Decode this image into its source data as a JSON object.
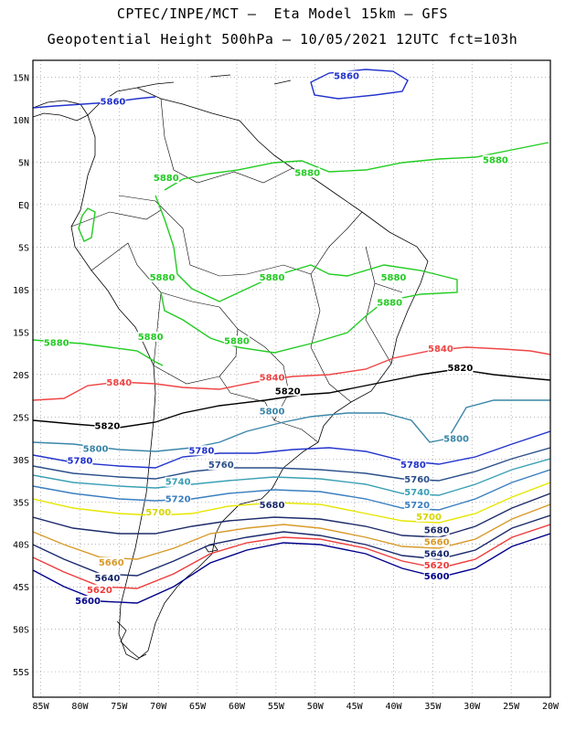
{
  "title": {
    "line1": "CPTEC/INPE/MCT –  Eta Model 15km – GFS",
    "line2": "Geopotential Height 500hPa – 10/05/2021 12UTC fct=103h"
  },
  "axes": {
    "lat_labels": [
      "15N",
      "10N",
      "5N",
      "EQ",
      "5S",
      "10S",
      "15S",
      "20S",
      "25S",
      "30S",
      "35S",
      "40S",
      "45S",
      "50S",
      "55S"
    ],
    "lon_labels": [
      "85W",
      "80W",
      "75W",
      "70W",
      "65W",
      "60W",
      "55W",
      "50W",
      "45W",
      "40W",
      "35W",
      "30W",
      "25W",
      "20W"
    ]
  },
  "chart_data": {
    "type": "contour_map",
    "variable": "geopotential height 500hPa",
    "xlim": [
      -86,
      -20
    ],
    "ylim": [
      -58,
      17
    ],
    "contour_levels": [
      {
        "value": 5600,
        "color": "#00008b"
      },
      {
        "value": 5620,
        "color": "#ef3b3b"
      },
      {
        "value": 5640,
        "color": "#1a2a6c"
      },
      {
        "value": 5660,
        "color": "#d89a2a"
      },
      {
        "value": 5680,
        "color": "#1d2b6b"
      },
      {
        "value": 5700,
        "color": "#e6e600"
      },
      {
        "value": 5720,
        "color": "#3a7ec0"
      },
      {
        "value": 5740,
        "color": "#3aa0b5"
      },
      {
        "value": 5760,
        "color": "#2b4f8a"
      },
      {
        "value": 5780,
        "color": "#2233cc"
      },
      {
        "value": 5800,
        "color": "#3a86a8"
      },
      {
        "value": 5820,
        "color": "#000000"
      },
      {
        "value": 5840,
        "color": "#ef4444"
      },
      {
        "value": 5860,
        "color": "#2233cc"
      },
      {
        "value": 5880,
        "color": "#22cc22"
      }
    ],
    "contour_labels": [
      {
        "text": "5860",
        "lon": -46,
        "lat": 14.9,
        "color": "#2233cc"
      },
      {
        "text": "5860",
        "lon": -75.8,
        "lat": 11.9,
        "color": "#2233cc"
      },
      {
        "text": "5880",
        "lon": -69,
        "lat": 2.9,
        "color": "#22cc22"
      },
      {
        "text": "5880",
        "lon": -51,
        "lat": 3.5,
        "color": "#22cc22"
      },
      {
        "text": "5880",
        "lon": -27,
        "lat": 5.0,
        "color": "#22cc22"
      },
      {
        "text": "5880",
        "lon": -69.5,
        "lat": -8.8,
        "color": "#22cc22"
      },
      {
        "text": "5880",
        "lon": -55.5,
        "lat": -8.8,
        "color": "#22cc22"
      },
      {
        "text": "5880",
        "lon": -40,
        "lat": -8.8,
        "color": "#22cc22"
      },
      {
        "text": "5880",
        "lon": -40.5,
        "lat": -11.8,
        "color": "#22cc22"
      },
      {
        "text": "5880",
        "lon": -83,
        "lat": -16.5,
        "color": "#22cc22"
      },
      {
        "text": "5880",
        "lon": -71,
        "lat": -15.8,
        "color": "#22cc22"
      },
      {
        "text": "5880",
        "lon": -60,
        "lat": -16.3,
        "color": "#22cc22"
      },
      {
        "text": "5840",
        "lon": -34,
        "lat": -17.2,
        "color": "#ef4444"
      },
      {
        "text": "5840",
        "lon": -75,
        "lat": -21.2,
        "color": "#ef4444"
      },
      {
        "text": "5840",
        "lon": -55.5,
        "lat": -20.6,
        "color": "#ef4444"
      },
      {
        "text": "5820",
        "lon": -31.5,
        "lat": -19.5,
        "color": "#000000"
      },
      {
        "text": "5820",
        "lon": -53.5,
        "lat": -22.2,
        "color": "#000000"
      },
      {
        "text": "5820",
        "lon": -76.5,
        "lat": -26.3,
        "color": "#000000"
      },
      {
        "text": "5800",
        "lon": -78,
        "lat": -29.0,
        "color": "#3a86a8"
      },
      {
        "text": "5800",
        "lon": -55.5,
        "lat": -24.6,
        "color": "#3a86a8"
      },
      {
        "text": "5800",
        "lon": -32,
        "lat": -27.8,
        "color": "#3a86a8"
      },
      {
        "text": "5780",
        "lon": -80,
        "lat": -30.4,
        "color": "#2233cc"
      },
      {
        "text": "5780",
        "lon": -64.5,
        "lat": -29.2,
        "color": "#2233cc"
      },
      {
        "text": "5780",
        "lon": -37.5,
        "lat": -30.9,
        "color": "#2233cc"
      },
      {
        "text": "5760",
        "lon": -62,
        "lat": -30.9,
        "color": "#2b4f8a"
      },
      {
        "text": "5760",
        "lon": -37,
        "lat": -32.6,
        "color": "#2b4f8a"
      },
      {
        "text": "5740",
        "lon": -67.5,
        "lat": -32.9,
        "color": "#3aa0b5"
      },
      {
        "text": "5740",
        "lon": -37,
        "lat": -34.1,
        "color": "#3aa0b5"
      },
      {
        "text": "5720",
        "lon": -67.5,
        "lat": -34.9,
        "color": "#3a7ec0"
      },
      {
        "text": "5720",
        "lon": -37,
        "lat": -35.6,
        "color": "#3a7ec0"
      },
      {
        "text": "5700",
        "lon": -70,
        "lat": -36.5,
        "color": "#d6d600"
      },
      {
        "text": "5700",
        "lon": -35.5,
        "lat": -37.0,
        "color": "#d6d600"
      },
      {
        "text": "5680",
        "lon": -55.5,
        "lat": -35.6,
        "color": "#1d2b6b"
      },
      {
        "text": "5680",
        "lon": -34.5,
        "lat": -38.6,
        "color": "#1d2b6b"
      },
      {
        "text": "5660",
        "lon": -76,
        "lat": -42.4,
        "color": "#d89a2a"
      },
      {
        "text": "5660",
        "lon": -34.5,
        "lat": -40.0,
        "color": "#d89a2a"
      },
      {
        "text": "5640",
        "lon": -76.5,
        "lat": -44.2,
        "color": "#1a2a6c"
      },
      {
        "text": "5640",
        "lon": -34.5,
        "lat": -41.4,
        "color": "#1a2a6c"
      },
      {
        "text": "5620",
        "lon": -77.5,
        "lat": -45.6,
        "color": "#ef3b3b"
      },
      {
        "text": "5620",
        "lon": -34.5,
        "lat": -42.7,
        "color": "#ef3b3b"
      },
      {
        "text": "5600",
        "lon": -79,
        "lat": -46.9,
        "color": "#00008b"
      },
      {
        "text": "5600",
        "lon": -34.5,
        "lat": -44.0,
        "color": "#00008b"
      }
    ],
    "grid": true
  }
}
